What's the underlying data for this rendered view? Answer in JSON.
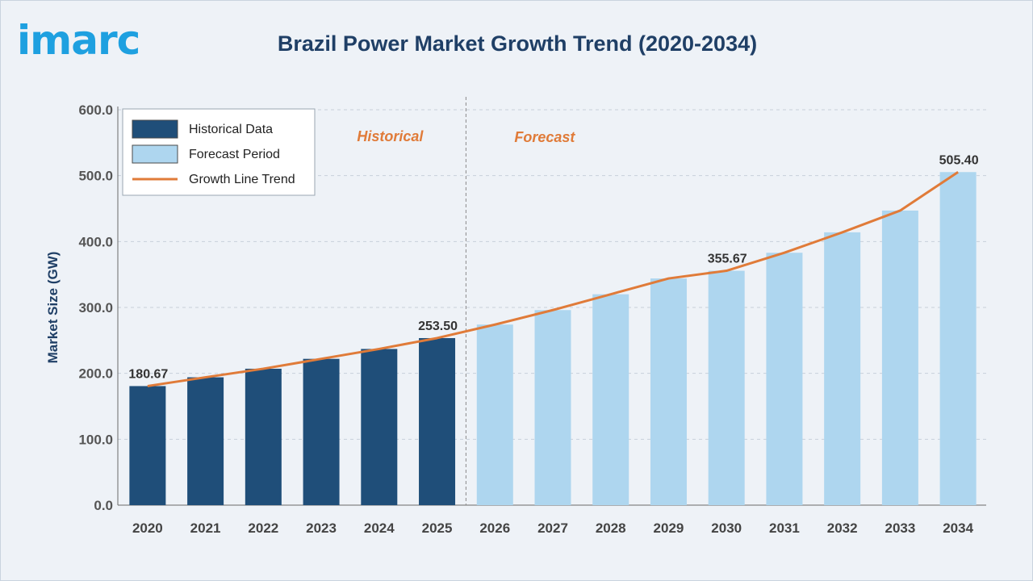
{
  "logo_text": "imarc",
  "chart_data": {
    "type": "bar",
    "title": "Brazil Power Market Growth Trend (2020-2034)",
    "xlabel": "",
    "ylabel": "Market Size (GW)",
    "ylim": [
      0,
      600
    ],
    "yticks": [
      "0.0",
      "100.0",
      "200.0",
      "300.0",
      "400.0",
      "500.0",
      "600.0"
    ],
    "grid": true,
    "categories": [
      "2020",
      "2021",
      "2022",
      "2023",
      "2024",
      "2025",
      "2026",
      "2027",
      "2028",
      "2029",
      "2030",
      "2031",
      "2032",
      "2033",
      "2034"
    ],
    "values": [
      180.67,
      194,
      207,
      222,
      237,
      253.5,
      274,
      296,
      320,
      344,
      355.67,
      383,
      414,
      447,
      505.4
    ],
    "historical_count": 6,
    "data_labels": [
      {
        "category": "2020",
        "text": "180.67"
      },
      {
        "category": "2025",
        "text": "253.50"
      },
      {
        "category": "2030",
        "text": "355.67"
      },
      {
        "category": "2034",
        "text": "505.40"
      }
    ],
    "series": [
      {
        "name": "Historical Data",
        "kind": "bar",
        "color": "#1f4e79"
      },
      {
        "name": "Forecast Period",
        "kind": "bar",
        "color": "#aed6ef"
      },
      {
        "name": "Growth Line Trend",
        "kind": "line",
        "color": "#e07b39"
      }
    ],
    "period_labels": {
      "historical": "Historical",
      "forecast": "Forecast"
    },
    "legend_position": "top-left"
  }
}
